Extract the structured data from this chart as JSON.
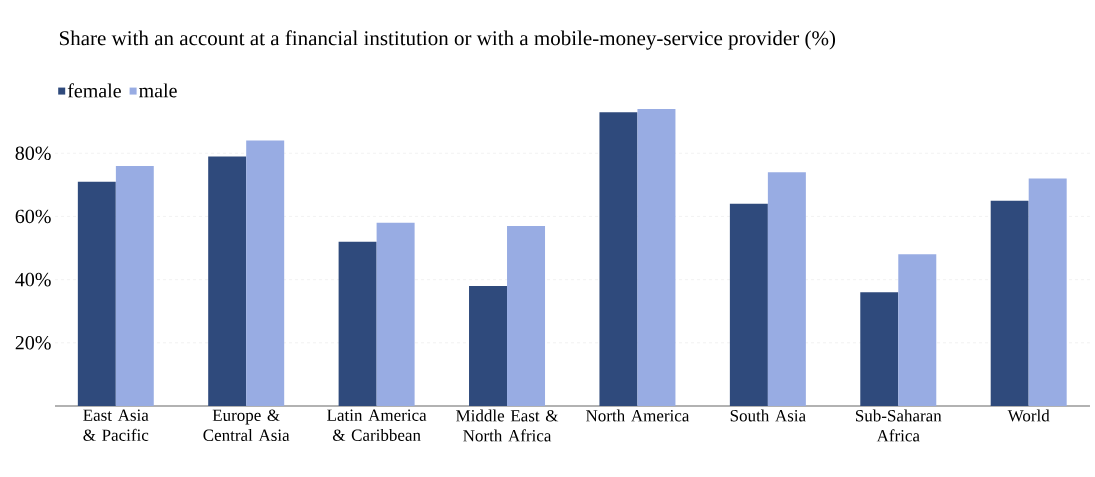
{
  "chart_data": {
    "type": "bar",
    "title": "Share with an account at a financial institution or with a mobile-money-service provider (%)",
    "categories": [
      "East Asia & Pacific",
      "Europe & Central Asia",
      "Latin America & Caribbean",
      "Middle East & North Africa",
      "North America",
      "South Asia",
      "Sub-Saharan Africa",
      "World"
    ],
    "series": [
      {
        "name": "female",
        "color": "#2f4a7c",
        "values": [
          71,
          79,
          52,
          38,
          93,
          64,
          36,
          65
        ]
      },
      {
        "name": "male",
        "color": "#98ace3",
        "values": [
          76,
          84,
          58,
          57,
          94,
          74,
          48,
          72
        ]
      }
    ],
    "yticks": [
      {
        "value": 20,
        "label": "20%"
      },
      {
        "value": 40,
        "label": "40%"
      },
      {
        "value": 60,
        "label": "60%"
      },
      {
        "value": 80,
        "label": "80%"
      }
    ],
    "ylim": [
      0,
      94
    ],
    "grid": "y",
    "legend": "top left"
  }
}
